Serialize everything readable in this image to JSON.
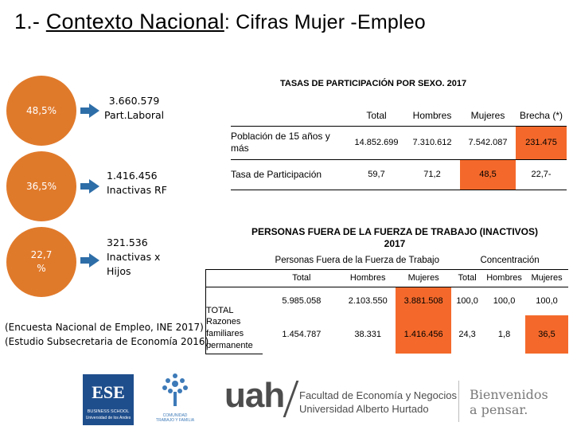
{
  "title": {
    "prefix": "1.- ",
    "underlined": "Contexto Nacional",
    "suffix": ": Cifras Mujer -Empleo"
  },
  "circles": [
    {
      "value": "48,5%",
      "label_line1": "3.660.579",
      "label_line2": "Part.Laboral"
    },
    {
      "value": "36,5%",
      "label_line1": "1.416.456",
      "label_line2": "Inactivas RF"
    },
    {
      "value_line1": "22,7",
      "value_line2": "%",
      "label_line1": "321.536",
      "label_line2": "Inactivas x",
      "label_line3": "Hijos"
    }
  ],
  "table1": {
    "heading": "TASAS DE PARTICIPACIÓN POR SEXO. 2017",
    "headers": [
      "Total",
      "Hombres",
      "Mujeres",
      "Brecha (*)"
    ],
    "rows": [
      {
        "label": "Población de 15 años y más",
        "values": [
          "14.852.699",
          "7.310.612",
          "7.542.087",
          "231.475"
        ]
      },
      {
        "label": "Tasa de Participación",
        "values": [
          "59,7",
          "71,2",
          "48,5",
          "22,7-"
        ]
      }
    ]
  },
  "table2": {
    "heading_line1": "PERSONAS FUERA DE LA FUERZA DE TRABAJO (INACTIVOS)",
    "heading_line2": "2017",
    "group1": "Personas Fuera de la Fuerza de Trabajo",
    "group2": "Concentración",
    "headers": [
      "Total",
      "Hombres",
      "Mujeres",
      "Total",
      "Hombres",
      "Mujeres"
    ],
    "rows": [
      {
        "label": "TOTAL",
        "values": [
          "5.985.058",
          "2.103.550",
          "3.881.508",
          "100,0",
          "100,0",
          "100,0"
        ]
      },
      {
        "label": "Razones familiares permanente",
        "values": [
          "1.454.787",
          "38.331",
          "1.416.456",
          "24,3",
          "1,8",
          "36,5"
        ]
      }
    ]
  },
  "sources": [
    "(Encuesta Nacional de Empleo, INE 2017)",
    "(Estudio Subsecretaria de Economía 2016)."
  ],
  "footer": {
    "ese_logo": "ESE",
    "ese_sub1": "BUSINESS SCHOOL",
    "ese_sub2": "Universidad de los Andes",
    "tree_caption1": "COMUNIDAD",
    "tree_caption2": "TRABAJO Y FAMILIA",
    "uah": "uah",
    "faculty_line1": "Facultad de Economía y Negocios",
    "faculty_line2": "Universidad Alberto Hurtado",
    "welcome_line1": "Bienvenidos",
    "welcome_line2": "a pensar."
  },
  "colors": {
    "orange_circle": "#e07a2b",
    "arrow_blue": "#2e6ea8",
    "highlight_orange": "#f4692b",
    "ese_blue": "#1f4e8c",
    "uah_gray": "#4d4d4d"
  }
}
